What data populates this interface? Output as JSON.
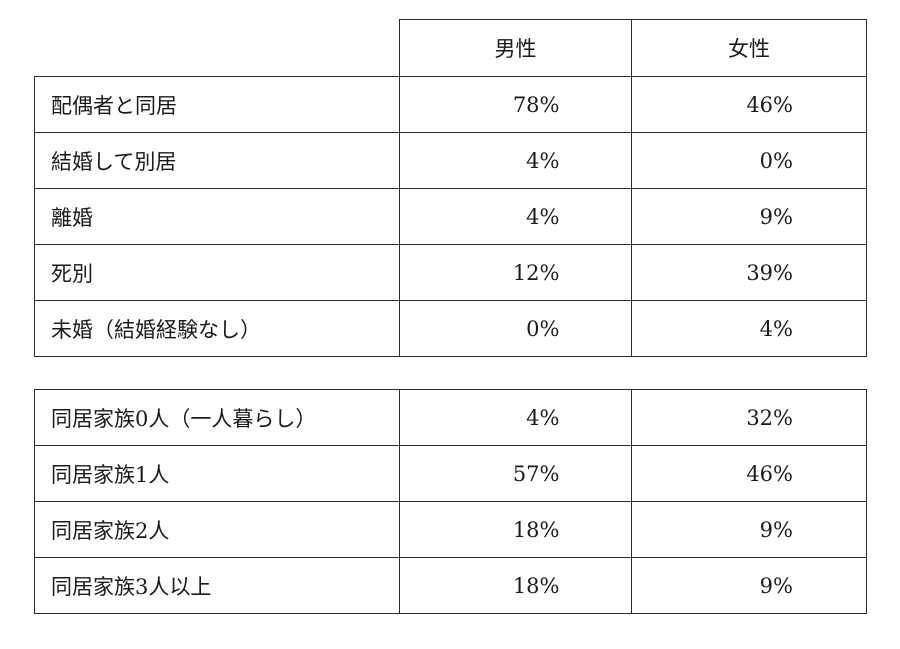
{
  "table1": {
    "headers": [
      "",
      "男性",
      "女性"
    ],
    "rows": [
      {
        "label": "配偶者と同居",
        "male": "78%",
        "female": "46%"
      },
      {
        "label": "結婚して別居",
        "male": "4%",
        "female": "0%"
      },
      {
        "label": "離婚",
        "male": "4%",
        "female": "9%"
      },
      {
        "label": "死別",
        "male": "12%",
        "female": "39%"
      },
      {
        "label": "未婚（結婚経験なし）",
        "male": "0%",
        "female": "4%"
      }
    ]
  },
  "table2": {
    "rows": [
      {
        "label": "同居家族0人（一人暮らし）",
        "male": "4%",
        "female": "32%"
      },
      {
        "label": "同居家族1人",
        "male": "57%",
        "female": "46%"
      },
      {
        "label": "同居家族2人",
        "male": "18%",
        "female": "9%"
      },
      {
        "label": "同居家族3人以上",
        "male": "18%",
        "female": "9%"
      }
    ]
  }
}
